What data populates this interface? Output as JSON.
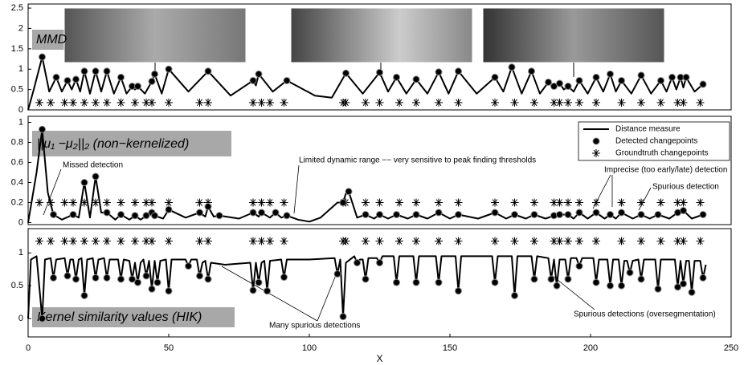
{
  "chart_data": [
    {
      "type": "line",
      "label": "MMD",
      "xlim": [
        0,
        250
      ],
      "ylim": [
        0,
        2.6
      ],
      "yticks": [
        0,
        0.5,
        1,
        1.5,
        2,
        2.5
      ],
      "line": {
        "x": [
          0,
          2,
          5,
          7.5,
          10,
          12,
          14,
          15.5,
          17,
          18.5,
          20,
          22,
          24,
          26,
          28,
          30.5,
          33,
          35,
          37,
          38,
          39,
          41.5,
          44,
          45,
          47.5,
          50,
          57,
          64,
          72,
          80,
          81,
          82,
          87,
          92,
          102,
          108,
          113,
          119,
          125,
          128,
          131,
          134.5,
          138,
          142,
          146,
          149.5,
          153,
          159.5,
          166,
          169,
          172,
          175.5,
          179,
          182,
          185,
          187,
          189,
          190.5,
          192,
          194,
          196,
          199,
          202,
          204.5,
          207,
          209,
          211,
          214.5,
          218,
          221.5,
          225,
          227,
          229,
          230.5,
          232,
          233,
          234,
          237,
          240
        ],
        "y": [
          0,
          0.5,
          1.3,
          0.45,
          0.8,
          0.45,
          0.72,
          0.5,
          0.75,
          0.45,
          0.95,
          0.4,
          0.95,
          0.45,
          0.95,
          0.4,
          0.8,
          0.4,
          0.58,
          0.5,
          0.58,
          0.4,
          0.7,
          0.88,
          0.4,
          1.0,
          0.45,
          0.95,
          0.35,
          0.72,
          0.6,
          0.88,
          0.45,
          0.72,
          0.35,
          0.3,
          0.9,
          0.4,
          0.92,
          0.45,
          0.8,
          0.4,
          0.75,
          0.4,
          0.93,
          0.4,
          0.95,
          0.4,
          0.8,
          0.45,
          1.05,
          0.4,
          0.95,
          0.4,
          0.68,
          0.58,
          0.65,
          0.5,
          0.58,
          0.45,
          0.72,
          0.4,
          0.8,
          0.45,
          0.88,
          0.45,
          0.72,
          0.4,
          0.85,
          0.4,
          0.72,
          0.45,
          0.8,
          0.5,
          0.8,
          0.55,
          0.8,
          0.45,
          0.63
        ]
      },
      "detected": {
        "x": [
          5,
          10,
          14,
          17,
          20,
          24,
          28,
          33,
          37,
          39,
          44,
          45,
          50,
          64,
          80,
          82,
          92,
          113,
          125,
          131,
          138,
          146,
          153,
          166,
          172,
          179,
          185,
          187,
          189,
          192,
          196,
          202,
          207,
          211,
          218,
          225,
          229,
          232,
          234,
          240
        ],
        "y": [
          1.3,
          0.8,
          0.72,
          0.75,
          0.95,
          0.95,
          0.95,
          0.8,
          0.58,
          0.58,
          0.7,
          0.88,
          1.0,
          0.95,
          0.72,
          0.88,
          0.72,
          0.9,
          0.92,
          0.8,
          0.75,
          0.93,
          0.95,
          0.8,
          1.05,
          0.95,
          0.68,
          0.58,
          0.65,
          0.58,
          0.72,
          0.8,
          0.88,
          0.72,
          0.85,
          0.72,
          0.8,
          0.8,
          0.8,
          0.63
        ]
      },
      "groundtruth": {
        "x": [
          4,
          8,
          13,
          16,
          20,
          24,
          28,
          33,
          38,
          42,
          44,
          50,
          61,
          64,
          80,
          83,
          86,
          91,
          112,
          113,
          120,
          125,
          132,
          138,
          146,
          153,
          166,
          173,
          180,
          187,
          189,
          192,
          196,
          202,
          211,
          218,
          225,
          231,
          233,
          239
        ],
        "level": 0.18
      }
    },
    {
      "type": "line",
      "label": "||μ₁ −μ₂||₂ (non−kernelized)",
      "xlim": [
        0,
        250
      ],
      "ylim": [
        -0.02,
        1.06
      ],
      "yticks": [
        0,
        0.2,
        0.4,
        0.6,
        0.8,
        1
      ],
      "legend": "upper right",
      "line": {
        "name": "Distance measure",
        "x": [
          0,
          3,
          5,
          7,
          9,
          12,
          16,
          18,
          20,
          22,
          24,
          26,
          28,
          31,
          33,
          36,
          38,
          40,
          42,
          44,
          45,
          48,
          50,
          56,
          61,
          63,
          64,
          66,
          68,
          75,
          80,
          82,
          83,
          86,
          88,
          90,
          92,
          96,
          100,
          104,
          108,
          110,
          112,
          113,
          114,
          117,
          120,
          123,
          125,
          128,
          131,
          135,
          138,
          142,
          146,
          150,
          153,
          160,
          166,
          170,
          173,
          177,
          180,
          184,
          187,
          189,
          192,
          194,
          196,
          199,
          202,
          205,
          207,
          209,
          211,
          215,
          218,
          221,
          224,
          228,
          231,
          233,
          236,
          240
        ],
        "y": [
          0,
          0.5,
          0.93,
          0.3,
          0.08,
          0.03,
          0.08,
          0.05,
          0.4,
          0.05,
          0.46,
          0.1,
          0.1,
          0.03,
          0.08,
          0.03,
          0.07,
          0.03,
          0.07,
          0.1,
          0.07,
          0.04,
          0.13,
          0.05,
          0.1,
          0.06,
          0.16,
          0.06,
          0.07,
          0.04,
          0.1,
          0.06,
          0.1,
          0.05,
          0.1,
          0.05,
          0.07,
          0.03,
          0.01,
          0.05,
          0.15,
          0.2,
          0.2,
          0.29,
          0.31,
          0.05,
          0.08,
          0.04,
          0.08,
          0.04,
          0.08,
          0.04,
          0.08,
          0.04,
          0.1,
          0.04,
          0.08,
          0.04,
          0.1,
          0.04,
          0.08,
          0.04,
          0.08,
          0.04,
          0.07,
          0.08,
          0.08,
          0.04,
          0.1,
          0.04,
          0.1,
          0.04,
          0.08,
          0.04,
          0.1,
          0.04,
          0.08,
          0.04,
          0.08,
          0.04,
          0.1,
          0.12,
          0.04,
          0.08
        ]
      },
      "detected": {
        "name": "Detected changepoints",
        "x": [
          5,
          9,
          16,
          20,
          24,
          28,
          33,
          38,
          42,
          44,
          45,
          50,
          61,
          64,
          68,
          80,
          83,
          88,
          92,
          112,
          114,
          120,
          125,
          131,
          138,
          146,
          153,
          166,
          173,
          180,
          187,
          189,
          192,
          196,
          202,
          207,
          211,
          218,
          224,
          231,
          233,
          240
        ],
        "y": [
          0.93,
          0.08,
          0.08,
          0.4,
          0.46,
          0.1,
          0.08,
          0.07,
          0.07,
          0.1,
          0.07,
          0.13,
          0.1,
          0.16,
          0.07,
          0.1,
          0.1,
          0.1,
          0.07,
          0.2,
          0.31,
          0.08,
          0.08,
          0.08,
          0.08,
          0.1,
          0.08,
          0.1,
          0.08,
          0.08,
          0.07,
          0.08,
          0.08,
          0.1,
          0.1,
          0.08,
          0.1,
          0.08,
          0.08,
          0.1,
          0.12,
          0.08
        ]
      },
      "groundtruth": {
        "name": "Groundtruth changepoints",
        "x": [
          4,
          8,
          13,
          16,
          20,
          24,
          28,
          33,
          38,
          42,
          44,
          50,
          61,
          64,
          80,
          83,
          86,
          91,
          112,
          113,
          120,
          125,
          132,
          138,
          146,
          153,
          166,
          173,
          180,
          187,
          189,
          192,
          196,
          202,
          211,
          218,
          225,
          231,
          233,
          239
        ],
        "level": 0.2
      },
      "annotations": [
        "Missed detection",
        "Limited dynamic range −− very sensitive to peak finding thresholds",
        "Imprecise (too early/late) detection",
        "Spurious detection"
      ]
    },
    {
      "type": "line",
      "label": "Kernel similarity values (HIK)",
      "xlim": [
        0,
        250
      ],
      "ylim": [
        -0.28,
        1.37
      ],
      "yticks": [
        0,
        0.5,
        1
      ],
      "xticks": [
        0,
        50,
        100,
        150,
        200,
        250
      ],
      "xlabel": "X",
      "line": {
        "x": [
          0,
          1,
          3,
          5,
          6,
          8,
          9,
          10,
          13,
          14,
          15,
          16,
          17,
          18,
          19,
          20,
          21,
          23,
          24,
          25,
          27,
          28,
          29,
          32,
          33,
          34,
          36,
          37,
          38,
          39,
          40,
          41,
          42,
          43,
          44,
          45,
          46,
          47,
          49,
          50,
          51,
          56,
          57,
          58,
          60,
          61,
          62,
          63,
          64,
          65,
          70,
          79,
          80,
          81,
          82,
          83,
          84,
          85,
          86,
          90,
          91,
          92,
          100,
          109,
          110,
          111,
          112,
          113,
          116,
          117,
          118,
          119,
          120,
          121,
          124,
          125,
          126,
          130,
          131,
          132,
          137,
          138,
          139,
          145,
          146,
          147,
          152,
          153,
          154,
          165,
          166,
          167,
          172,
          173,
          174,
          179,
          180,
          181,
          185,
          186,
          187,
          188,
          189,
          191,
          192,
          193,
          195,
          196,
          197,
          201,
          202,
          203,
          206,
          207,
          208,
          210,
          211,
          212,
          213,
          214,
          215,
          217,
          218,
          219,
          223,
          224,
          225,
          230,
          231,
          232,
          233,
          234,
          235,
          236,
          237,
          239,
          240,
          241
        ],
        "y": [
          0,
          0.9,
          0.95,
          0,
          0.9,
          0.92,
          0.62,
          0.9,
          0.92,
          0.65,
          0.9,
          0.9,
          0.6,
          0.9,
          0.92,
          0.35,
          0.9,
          0.92,
          0.62,
          0.9,
          0.92,
          0.62,
          0.9,
          0.9,
          0.6,
          0.9,
          0.88,
          0.6,
          0.85,
          0.55,
          0.85,
          0.9,
          0.65,
          0.88,
          0.45,
          0.88,
          0.55,
          0.88,
          0.9,
          0.42,
          0.9,
          0.9,
          0.8,
          0.9,
          0.9,
          0.65,
          0.85,
          0.88,
          0.6,
          0.85,
          0.82,
          0.85,
          0.43,
          0.85,
          0.55,
          0.85,
          0.88,
          0.42,
          0.88,
          0.9,
          0.63,
          0.9,
          0.9,
          0.92,
          0.68,
          0.9,
          0.03,
          0.85,
          0.95,
          0.85,
          0.9,
          0.9,
          0.6,
          0.92,
          0.92,
          0.85,
          0.95,
          0.95,
          0.55,
          0.95,
          0.95,
          0.55,
          0.95,
          0.95,
          0.55,
          0.95,
          0.95,
          0.42,
          0.95,
          0.95,
          0.55,
          0.95,
          0.95,
          0.35,
          0.95,
          0.95,
          0.6,
          0.95,
          0.92,
          0.6,
          0.9,
          0.5,
          0.9,
          0.9,
          0.6,
          0.92,
          0.92,
          0.8,
          0.92,
          0.92,
          0.55,
          0.9,
          0.9,
          0.5,
          0.9,
          0.9,
          0.5,
          0.88,
          0.88,
          0.7,
          0.88,
          0.9,
          0.6,
          0.9,
          0.9,
          0.45,
          0.9,
          0.9,
          0.48,
          0.88,
          0.53,
          0.88,
          0.88,
          0.4,
          0.88,
          0.88,
          0.62,
          0.82
        ]
      },
      "detected": {
        "x": [
          5,
          9,
          14,
          17,
          20,
          24,
          28,
          33,
          37,
          39,
          42,
          44,
          46,
          50,
          57,
          61,
          64,
          80,
          82,
          85,
          91,
          110,
          112,
          117,
          120,
          125,
          131,
          138,
          146,
          153,
          166,
          173,
          180,
          186,
          188,
          192,
          196,
          202,
          207,
          211,
          214,
          218,
          224,
          231,
          233,
          236,
          240
        ],
        "y": [
          0.0,
          0.62,
          0.65,
          0.6,
          0.35,
          0.62,
          0.62,
          0.6,
          0.6,
          0.55,
          0.65,
          0.45,
          0.55,
          0.42,
          0.8,
          0.65,
          0.6,
          0.43,
          0.55,
          0.42,
          0.63,
          0.68,
          0.03,
          0.85,
          0.6,
          0.85,
          0.55,
          0.55,
          0.55,
          0.42,
          0.55,
          0.35,
          0.6,
          0.6,
          0.5,
          0.6,
          0.8,
          0.55,
          0.5,
          0.5,
          0.7,
          0.6,
          0.45,
          0.48,
          0.53,
          0.4,
          0.62
        ]
      },
      "groundtruth": {
        "x": [
          4,
          8,
          13,
          16,
          20,
          24,
          28,
          33,
          38,
          42,
          44,
          50,
          61,
          64,
          80,
          83,
          86,
          91,
          112,
          113,
          120,
          125,
          132,
          138,
          146,
          153,
          166,
          173,
          180,
          187,
          189,
          192,
          196,
          202,
          211,
          218,
          225,
          231,
          233,
          239
        ],
        "level": 1.18
      },
      "annotations": [
        "Many spurious detections",
        "Spurious detections (oversegmentation)"
      ]
    }
  ]
}
